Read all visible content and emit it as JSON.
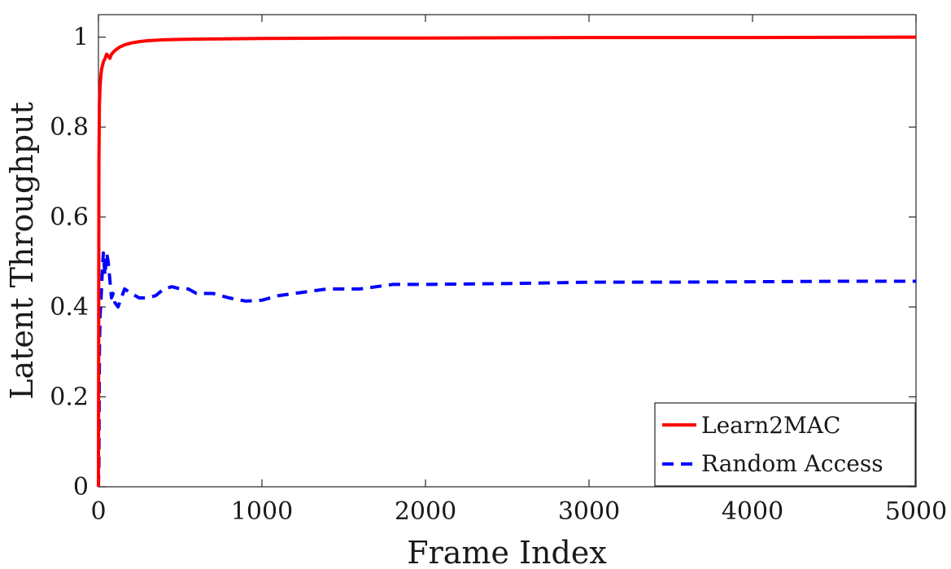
{
  "chart_data": {
    "type": "line",
    "xlabel": "Frame Index",
    "ylabel": "Latent Throughput",
    "xlim": [
      0,
      5000
    ],
    "ylim": [
      0,
      1.05
    ],
    "xticks": [
      0,
      1000,
      2000,
      3000,
      4000,
      5000
    ],
    "xtick_labels": [
      "0",
      "1000",
      "2000",
      "3000",
      "4000",
      "5000"
    ],
    "yticks": [
      0,
      0.2,
      0.4,
      0.6,
      0.8,
      1
    ],
    "ytick_labels": [
      "0",
      "0.2",
      "0.4",
      "0.6",
      "0.8",
      "1"
    ],
    "grid": false,
    "legend_position": "bottom-right",
    "series": [
      {
        "name": "Learn2MAC",
        "color": "#ff0000",
        "style": "solid",
        "x": [
          0,
          3,
          6,
          10,
          15,
          20,
          30,
          40,
          50,
          60,
          70,
          80,
          100,
          130,
          160,
          200,
          250,
          300,
          400,
          500,
          700,
          1000,
          1500,
          2000,
          3000,
          4000,
          5000
        ],
        "y": [
          0.0,
          0.72,
          0.85,
          0.89,
          0.915,
          0.93,
          0.945,
          0.952,
          0.962,
          0.958,
          0.953,
          0.962,
          0.97,
          0.978,
          0.983,
          0.987,
          0.99,
          0.992,
          0.994,
          0.995,
          0.996,
          0.997,
          0.998,
          0.998,
          0.999,
          0.999,
          1.0
        ]
      },
      {
        "name": "Random Access",
        "color": "#0000ff",
        "style": "dashed",
        "x": [
          0,
          3,
          6,
          10,
          15,
          20,
          25,
          30,
          40,
          50,
          60,
          70,
          80,
          90,
          100,
          120,
          140,
          160,
          200,
          250,
          300,
          350,
          400,
          450,
          500,
          550,
          600,
          700,
          800,
          900,
          1000,
          1100,
          1200,
          1400,
          1600,
          1800,
          2000,
          2500,
          3000,
          3500,
          4000,
          4500,
          5000
        ],
        "y": [
          0.0,
          0.05,
          0.3,
          0.38,
          0.41,
          0.45,
          0.49,
          0.52,
          0.47,
          0.52,
          0.5,
          0.46,
          0.42,
          0.43,
          0.41,
          0.4,
          0.42,
          0.44,
          0.43,
          0.42,
          0.42,
          0.425,
          0.44,
          0.445,
          0.44,
          0.44,
          0.43,
          0.43,
          0.42,
          0.413,
          0.415,
          0.425,
          0.43,
          0.44,
          0.44,
          0.45,
          0.45,
          0.452,
          0.455,
          0.455,
          0.456,
          0.457,
          0.457
        ]
      }
    ]
  }
}
